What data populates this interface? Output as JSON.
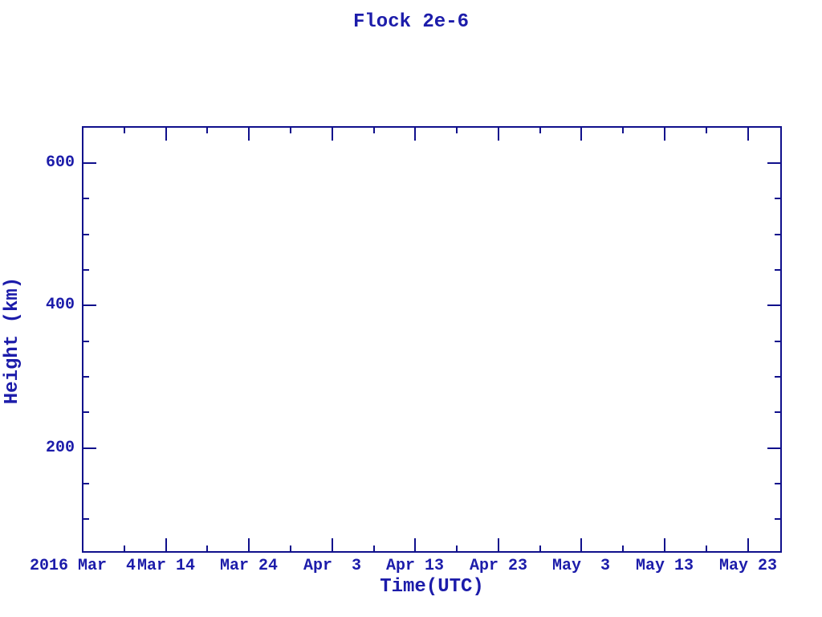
{
  "title": "Flock 2e-6",
  "colors": {
    "axis": "#10108c",
    "text": "#1c1caa",
    "background": "#ffffff"
  },
  "chart_data": {
    "type": "scatter",
    "title": "Flock 2e-6",
    "xlabel": "Time(UTC)",
    "ylabel": "Height (km)",
    "grid": false,
    "legend": null,
    "series": [],
    "note_visible_data": "axes box drawn, plot interior is empty (no data points rendered)",
    "x_axis": {
      "unit": "date",
      "xlim_days": [
        0,
        84
      ],
      "tick_days": [
        0,
        10,
        20,
        30,
        40,
        50,
        60,
        70,
        80
      ],
      "tick_labels": [
        "2016 Mar  4",
        "Mar 14",
        "Mar 24",
        "Apr  3",
        "Apr 13",
        "Apr 23",
        "May  3",
        "May 13",
        "May 23"
      ],
      "minor_tick_days": [
        5,
        15,
        25,
        35,
        45,
        55,
        65,
        75
      ]
    },
    "y_axis": {
      "unit": "km",
      "ylim": [
        54,
        651
      ],
      "tick_values": [
        200,
        400,
        600
      ],
      "tick_labels": [
        "200",
        "400",
        "600"
      ],
      "minor_tick_values": [
        100,
        150,
        250,
        300,
        350,
        450,
        500,
        550
      ]
    }
  }
}
